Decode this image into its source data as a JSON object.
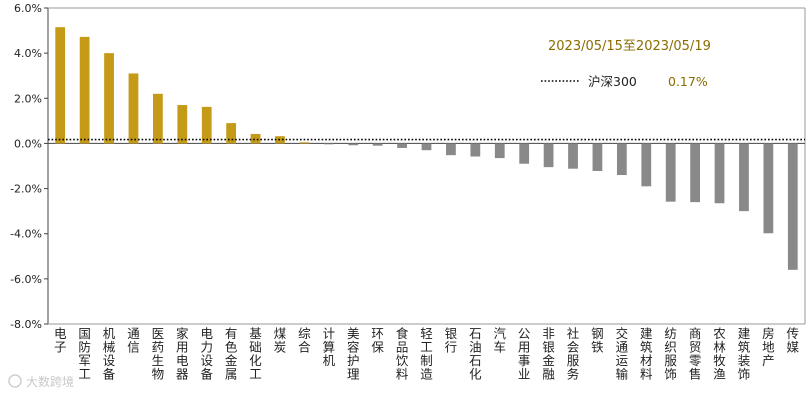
{
  "chart_data": {
    "type": "bar",
    "date_range": "2023/05/15至2023/05/19",
    "ylim": [
      -8,
      6
    ],
    "yticks": [
      "6.0%",
      "4.0%",
      "2.0%",
      "0.0%",
      "-2.0%",
      "-4.0%",
      "-6.0%",
      "-8.0%"
    ],
    "yticks_values": [
      6,
      4,
      2,
      0,
      -2,
      -4,
      -6,
      -8
    ],
    "reference_line": {
      "name": "沪深300",
      "value": 0.17,
      "label": "0.17%"
    },
    "categories": [
      "电子",
      "国防军工",
      "机械设备",
      "通信",
      "医药生物",
      "家用电器",
      "电力设备",
      "有色金属",
      "基础化工",
      "煤炭",
      "综合",
      "计算机",
      "美容护理",
      "环保",
      "食品饮料",
      "轻工制造",
      "银行",
      "石油石化",
      "汽车",
      "公用事业",
      "非银金融",
      "社会服务",
      "钢铁",
      "交通运输",
      "建筑材料",
      "纺织服饰",
      "商贸零售",
      "农林牧渔",
      "建筑装饰",
      "房地产",
      "传媒"
    ],
    "values": [
      5.15,
      4.72,
      4.0,
      3.1,
      2.2,
      1.7,
      1.62,
      0.9,
      0.42,
      0.32,
      0.05,
      -0.04,
      -0.08,
      -0.1,
      -0.2,
      -0.3,
      -0.52,
      -0.58,
      -0.65,
      -0.9,
      -1.05,
      -1.12,
      -1.22,
      -1.4,
      -1.9,
      -2.58,
      -2.6,
      -2.65,
      -3.0,
      -3.98,
      -5.6
    ],
    "colors": {
      "positive": "#c49a16",
      "negative": "#898989",
      "reference": "#000000"
    },
    "grid": false
  },
  "watermark": "大数跨境"
}
